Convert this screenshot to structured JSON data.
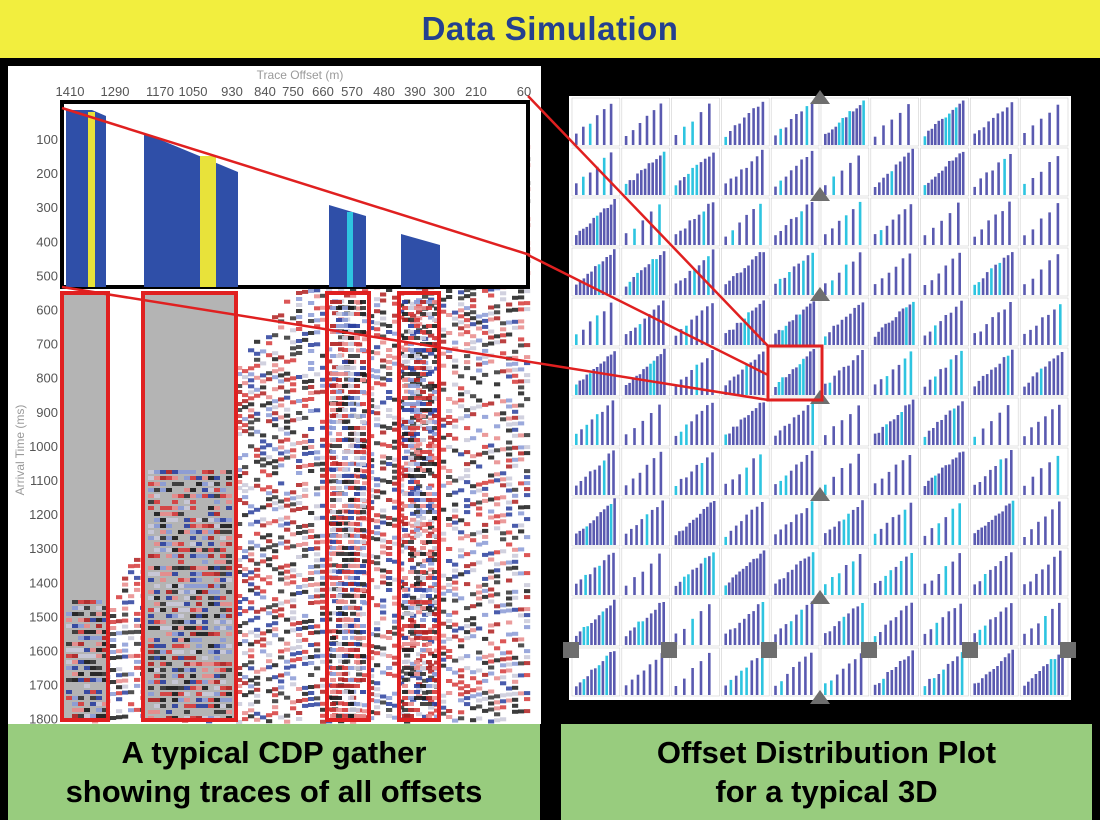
{
  "header": {
    "title": "Data Simulation"
  },
  "gather": {
    "x_axis_title": "Trace Offset (m)",
    "y_axis_title": "Arrival Time (ms)",
    "x_ticks": [
      "1410",
      "1290",
      "1170",
      "1050",
      "930",
      "840",
      "750",
      "660",
      "570",
      "480",
      "390",
      "300",
      "210",
      "60"
    ],
    "y_ticks": [
      "100",
      "200",
      "300",
      "400",
      "500",
      "600",
      "700",
      "800",
      "900",
      "1000",
      "1100",
      "1200",
      "1300",
      "1400",
      "1500",
      "1600",
      "1700",
      "1800"
    ],
    "caption_line1": "A typical CDP gather",
    "caption_line2": "showing traces of all offsets"
  },
  "offset_plot": {
    "caption_line1": "Offset Distribution Plot",
    "caption_line2": "for a typical 3D",
    "grid_cols": 10,
    "grid_rows": 12
  },
  "colors": {
    "title_bg": "#f2ee3e",
    "title_text": "#24408f",
    "caption_bg": "#98cc7e",
    "highlight": "#e02020",
    "trace_blue": "#2f4fa8",
    "trace_yellow": "#e8e23a",
    "plot_blue": "#5a5ab0",
    "plot_cyan": "#2ec4e0"
  }
}
